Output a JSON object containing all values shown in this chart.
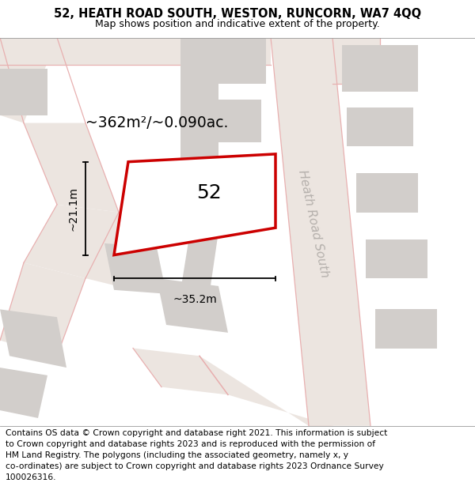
{
  "title_line1": "52, HEATH ROAD SOUTH, WESTON, RUNCORN, WA7 4QQ",
  "title_line2": "Map shows position and indicative extent of the property.",
  "footer_text": "Contains OS data © Crown copyright and database right 2021. This information is subject\nto Crown copyright and database rights 2023 and is reproduced with the permission of\nHM Land Registry. The polygons (including the associated geometry, namely x, y\nco-ordinates) are subject to Crown copyright and database rights 2023 Ordnance Survey\n100026316.",
  "bg": "#f5f0ee",
  "road_fill": "#ece5e0",
  "road_line": "#e8b0b0",
  "bld": "#d2cecb",
  "red": "#cc0000",
  "road_label_color": "#b5b0ac",
  "label_52": "52",
  "area_label": "~362m²/~0.090ac.",
  "dim_w": "~35.2m",
  "dim_h": "~21.1m",
  "road_name": "Heath Road South",
  "title_fs": 10.5,
  "sub_fs": 9.0,
  "footer_fs": 7.7,
  "area_fs": 13.5,
  "label_fs": 18,
  "dim_fs": 10,
  "road_name_fs": 11
}
